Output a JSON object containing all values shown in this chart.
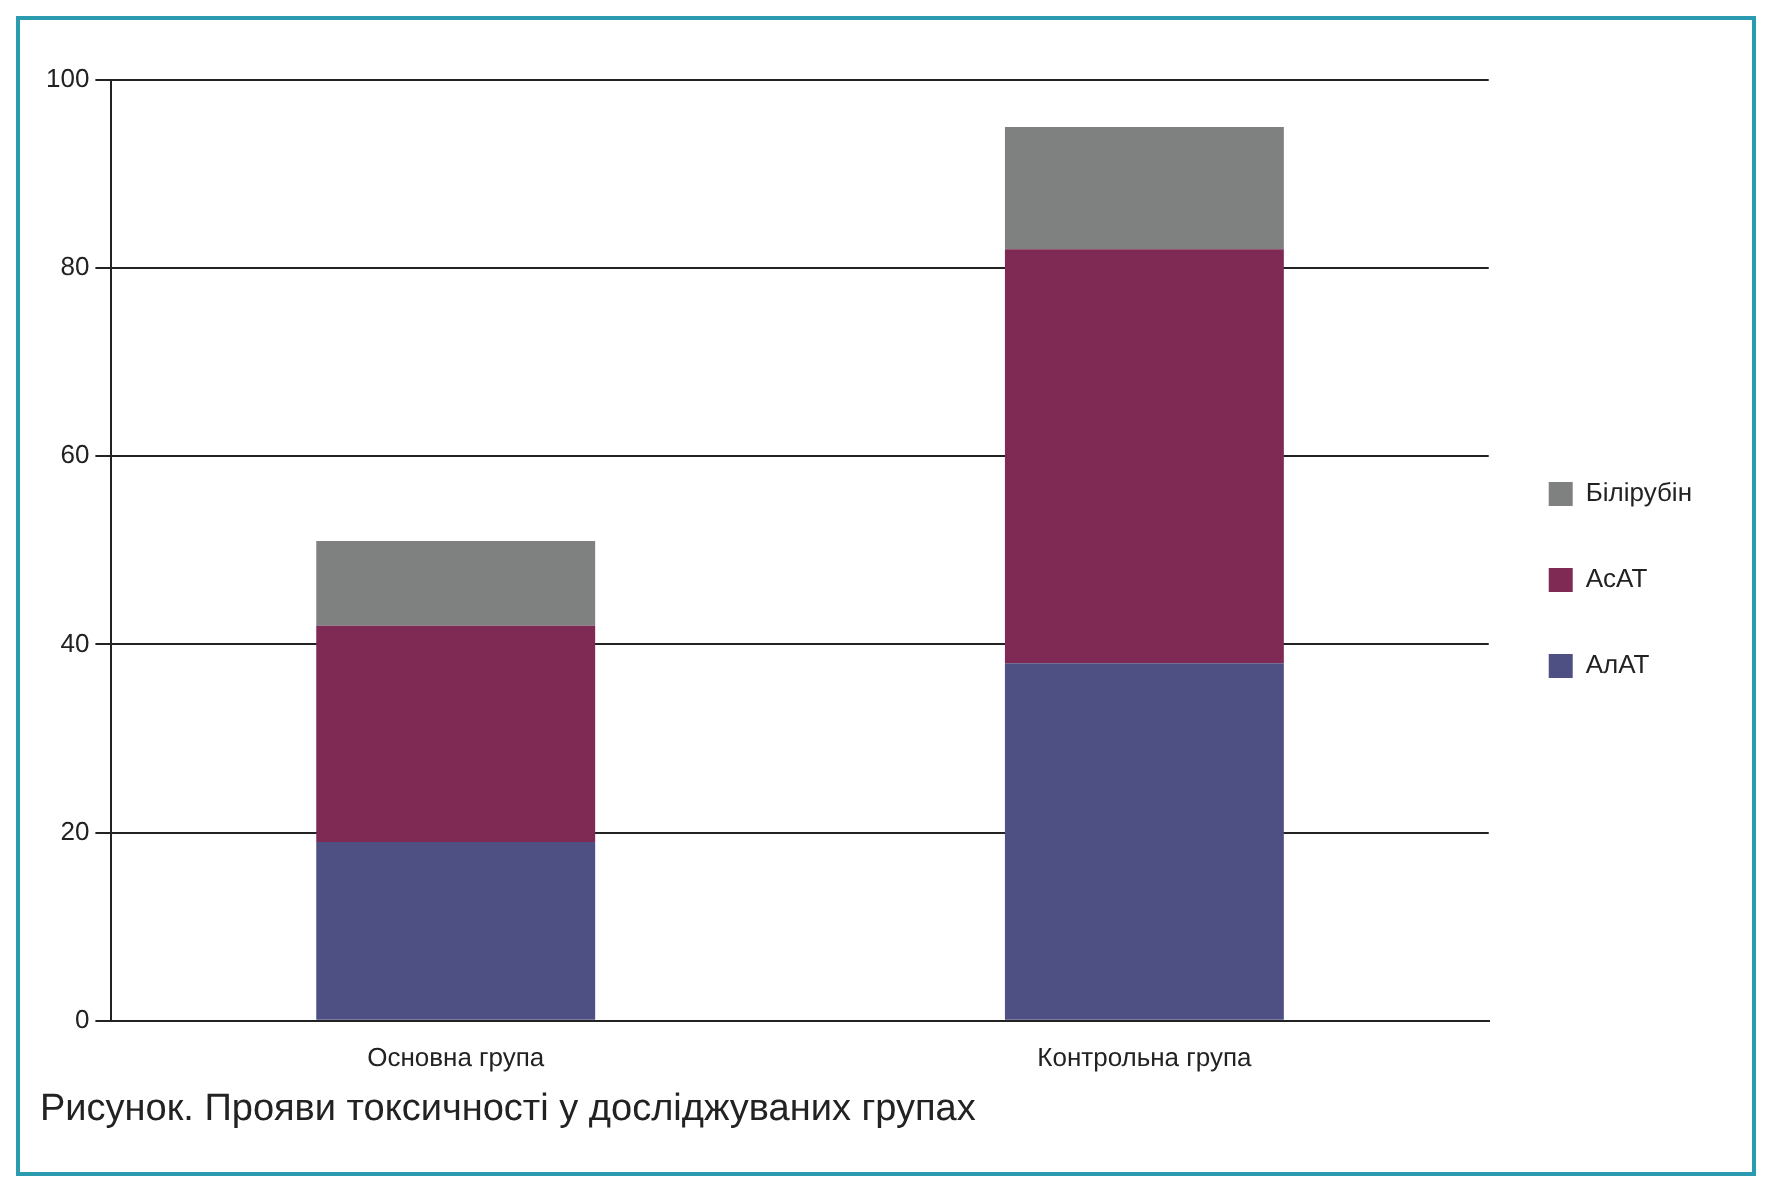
{
  "chart_data": {
    "type": "bar",
    "title": "Рисунок. Прояви токсичності у досліджуваних групах",
    "categories": [
      "Основна група",
      "Контрольна група"
    ],
    "stacked": true,
    "series": [
      {
        "name": "АлАТ",
        "color": "#4e4f82",
        "values": [
          19,
          38
        ]
      },
      {
        "name": "АсАТ",
        "color": "#7f2a55",
        "values": [
          23,
          44
        ]
      },
      {
        "name": "Білірубін",
        "color": "#7f8080",
        "values": [
          9,
          13
        ]
      }
    ],
    "ylim": [
      0,
      100
    ],
    "yticks": [
      0,
      20,
      40,
      60,
      80,
      100
    ],
    "grid": "y",
    "legend": "right"
  }
}
